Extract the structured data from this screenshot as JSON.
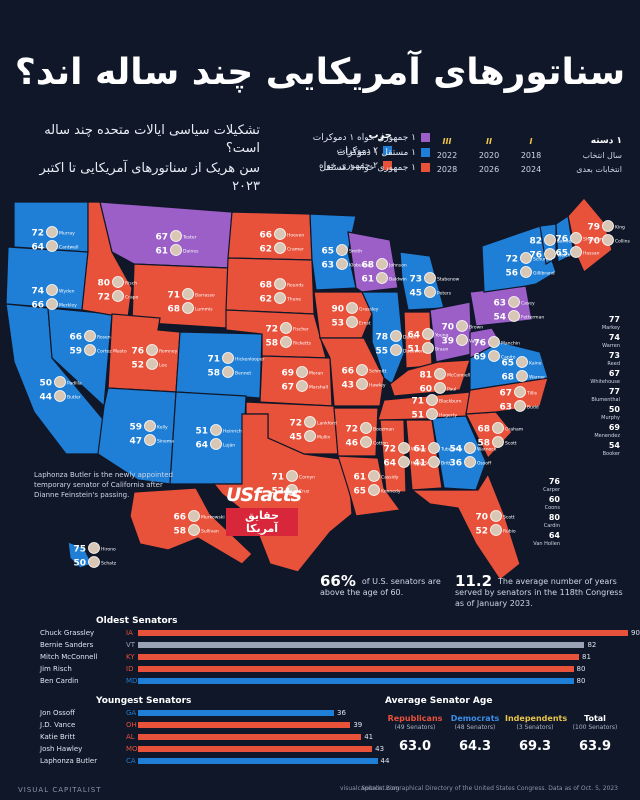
{
  "title": "سناتورهای آمریکایی چند ساله اند؟",
  "subtitle": {
    "line1": "تشکیلات سیاسی ایالات متحده چند ساله است؟",
    "line2": "سن هریک از سناتورهای آمریکایی تا اکتبر ۲۰۲۳"
  },
  "legend": {
    "party_heading": "حزب",
    "party": [
      {
        "label": "۲ دموکرات",
        "color": "#1f7fd6"
      },
      {
        "label": "۲ جمهوری خواه",
        "color": "#e8513a"
      }
    ],
    "mixed": [
      {
        "label": "۱ جمهوری خواه ۱ دموکرات",
        "color": "#9b5fc7"
      },
      {
        "label": "۱ مستقل ۱ دموکرات",
        "color": "#1f7fd6"
      },
      {
        "label": "۱ جمهوری خواه ۱ مستقل",
        "color": "#e8513a"
      }
    ]
  },
  "classes": {
    "heading": "۱ دسته",
    "romans": [
      "I",
      "II",
      "III"
    ],
    "row1_label": "سال انتخاب",
    "row1": [
      "2018",
      "2020",
      "2022"
    ],
    "row2_label": "انتخابات بعدی",
    "row2": [
      "2024",
      "2026",
      "2028"
    ]
  },
  "map_states": [
    {
      "name": "WA",
      "party": "dem",
      "ages": [
        "72",
        "64"
      ],
      "names": [
        "Murray",
        "Cantwell"
      ]
    },
    {
      "name": "OR",
      "party": "dem",
      "ages": [
        "74",
        "66"
      ],
      "names": [
        "Wyden",
        "Merkley"
      ]
    },
    {
      "name": "CA",
      "party": "dem",
      "ages": [
        "50",
        "44"
      ],
      "names": [
        "Padilla",
        "Butler"
      ]
    },
    {
      "name": "NV",
      "party": "dem",
      "ages": [
        "66",
        "59"
      ],
      "names": [
        "Rosen",
        "Cortez Masto"
      ]
    },
    {
      "name": "ID",
      "party": "rep",
      "ages": [
        "80",
        "72"
      ],
      "names": [
        "Risch",
        "Crapo"
      ]
    },
    {
      "name": "MT",
      "party": "mixed",
      "ages": [
        "67",
        "61"
      ],
      "names": [
        "Tester",
        "Daines"
      ]
    },
    {
      "name": "WY",
      "party": "rep",
      "ages": [
        "71",
        "68"
      ],
      "names": [
        "Barrasso",
        "Lummis"
      ]
    },
    {
      "name": "UT",
      "party": "rep",
      "ages": [
        "76",
        "52"
      ],
      "names": [
        "Romney",
        "Lee"
      ]
    },
    {
      "name": "AZ",
      "party": "ind-dem",
      "ages": [
        "59",
        "47"
      ],
      "names": [
        "Kelly",
        "Sinema"
      ]
    },
    {
      "name": "CO",
      "party": "dem",
      "ages": [
        "71",
        "58"
      ],
      "names": [
        "Hickenlooper",
        "Bennet"
      ]
    },
    {
      "name": "NM",
      "party": "dem",
      "ages": [
        "51",
        "64"
      ],
      "names": [
        "Heinrich",
        "Luján"
      ]
    },
    {
      "name": "ND",
      "party": "rep",
      "ages": [
        "66",
        "62"
      ],
      "names": [
        "Hoeven",
        "Cramer"
      ]
    },
    {
      "name": "SD",
      "party": "rep",
      "ages": [
        "68",
        "62"
      ],
      "names": [
        "Rounds",
        "Thune"
      ]
    },
    {
      "name": "NE",
      "party": "rep",
      "ages": [
        "72",
        "58"
      ],
      "names": [
        "Fischer",
        "Ricketts"
      ]
    },
    {
      "name": "KS",
      "party": "rep",
      "ages": [
        "69",
        "67"
      ],
      "names": [
        "Moran",
        "Marshall"
      ]
    },
    {
      "name": "OK",
      "party": "rep",
      "ages": [
        "72",
        "45"
      ],
      "names": [
        "Lankford",
        "Mullin"
      ]
    },
    {
      "name": "TX",
      "party": "rep",
      "ages": [
        "71",
        "52"
      ],
      "names": [
        "Cornyn",
        "Cruz"
      ]
    },
    {
      "name": "MN",
      "party": "dem",
      "ages": [
        "65",
        "63"
      ],
      "names": [
        "Smith",
        "Klobuchar"
      ]
    },
    {
      "name": "IA",
      "party": "rep",
      "ages": [
        "90",
        "53"
      ],
      "names": [
        "Grassley",
        "Ernst"
      ]
    },
    {
      "name": "MO",
      "party": "rep",
      "ages": [
        "66",
        "43"
      ],
      "names": [
        "Schmitt",
        "Hawley"
      ]
    },
    {
      "name": "AR",
      "party": "rep",
      "ages": [
        "72",
        "46"
      ],
      "names": [
        "Boozman",
        "Cotton"
      ]
    },
    {
      "name": "LA",
      "party": "rep",
      "ages": [
        "61",
        "65"
      ],
      "names": [
        "Cassidy",
        "Kennedy"
      ]
    },
    {
      "name": "WI",
      "party": "mixed",
      "ages": [
        "68",
        "61"
      ],
      "names": [
        "Johnson",
        "Baldwin"
      ]
    },
    {
      "name": "IL",
      "party": "dem",
      "ages": [
        "78",
        "55"
      ],
      "names": [
        "Durbin",
        "Duckworth"
      ]
    },
    {
      "name": "MI",
      "party": "dem",
      "ages": [
        "73",
        "45"
      ],
      "names": [
        "Stabenow",
        "Peters"
      ]
    },
    {
      "name": "IN",
      "party": "rep",
      "ages": [
        "64",
        "51"
      ],
      "names": [
        "Young",
        "Braun"
      ]
    },
    {
      "name": "OH",
      "party": "mixed",
      "ages": [
        "70",
        "39"
      ],
      "names": [
        "Brown",
        "Vance"
      ]
    },
    {
      "name": "KY",
      "party": "rep",
      "ages": [
        "81",
        "60"
      ],
      "names": [
        "McConnell",
        "Paul"
      ]
    },
    {
      "name": "TN",
      "party": "rep",
      "ages": [
        "71",
        "51"
      ],
      "names": [
        "Blackburn",
        "Hagerty"
      ]
    },
    {
      "name": "MS",
      "party": "rep",
      "ages": [
        "72",
        "64"
      ],
      "names": [
        "Wicker",
        "Hyde-Smith"
      ]
    },
    {
      "name": "AL",
      "party": "rep",
      "ages": [
        "61",
        "41"
      ],
      "names": [
        "Tuberville",
        "Britt"
      ]
    },
    {
      "name": "GA",
      "party": "dem",
      "ages": [
        "54",
        "36"
      ],
      "names": [
        "Warnock",
        "Ossoff"
      ]
    },
    {
      "name": "FL",
      "party": "rep",
      "ages": [
        "70",
        "52"
      ],
      "names": [
        "Scott",
        "Rubio"
      ]
    },
    {
      "name": "SC",
      "party": "rep",
      "ages": [
        "68",
        "58"
      ],
      "names": [
        "Graham",
        "Scott"
      ]
    },
    {
      "name": "NC",
      "party": "rep",
      "ages": [
        "67",
        "63"
      ],
      "names": [
        "Tillis",
        "Budd"
      ]
    },
    {
      "name": "VA",
      "party": "dem",
      "ages": [
        "65",
        "68"
      ],
      "names": [
        "Kaine",
        "Warner"
      ]
    },
    {
      "name": "WV",
      "party": "mixed",
      "ages": [
        "76",
        "69"
      ],
      "names": [
        "Manchin",
        "Capito"
      ]
    },
    {
      "name": "PA",
      "party": "mixed",
      "ages": [
        "63",
        "54"
      ],
      "names": [
        "Casey",
        "Fetterman"
      ]
    },
    {
      "name": "NY",
      "party": "dem",
      "ages": [
        "72",
        "56"
      ],
      "names": [
        "Schumer",
        "Gillibrand"
      ]
    },
    {
      "name": "ME",
      "party": "ind-rep",
      "ages": [
        "79",
        "70"
      ],
      "names": [
        "King",
        "Collins"
      ]
    },
    {
      "name": "VT",
      "party": "ind-dem",
      "ages": [
        "82",
        "76"
      ],
      "names": [
        "Sanders",
        "Welch"
      ]
    },
    {
      "name": "NH",
      "party": "dem",
      "ages": [
        "76",
        "65"
      ],
      "names": [
        "Shaheen",
        "Hassan"
      ]
    },
    {
      "name": "HI",
      "party": "dem",
      "ages": [
        "75",
        "50"
      ],
      "names": [
        "Hirono",
        "Schatz"
      ]
    },
    {
      "name": "AK",
      "party": "rep",
      "ages": [
        "66",
        "58"
      ],
      "names": [
        "Murkowski",
        "Sullivan"
      ]
    }
  ],
  "east_labels": [
    {
      "age": "77",
      "name": "Markey"
    },
    {
      "age": "74",
      "name": "Warren"
    },
    {
      "age": "73",
      "name": "Reed"
    },
    {
      "age": "67",
      "name": "Whitehouse"
    },
    {
      "age": "77",
      "name": "Blumenthal"
    },
    {
      "age": "50",
      "name": "Murphy"
    },
    {
      "age": "69",
      "name": "Menendez"
    },
    {
      "age": "54",
      "name": "Booker"
    },
    {
      "age": "76",
      "name": "Carper"
    },
    {
      "age": "60",
      "name": "Coons"
    },
    {
      "age": "80",
      "name": "Cardin"
    },
    {
      "age": "64",
      "name": "Van Hollen"
    }
  ],
  "note": "Laphonza Butler is the newly appointed temporary senator of California after Dianne Feinstein's passing.",
  "stats": [
    {
      "value": "66%",
      "text": "of U.S. senators are above the age of 60."
    },
    {
      "value": "11.2",
      "text": "The average number of years served by senators in the 118th Congress as of January 2023."
    }
  ],
  "logo": {
    "brand": "USfacts",
    "arabic": "حقایق آمریکا"
  },
  "chart_data": [
    {
      "type": "bar",
      "title": "Oldest Senators",
      "categories": [
        "Chuck Grassley",
        "Bernie Sanders",
        "Mitch McConnell",
        "Jim Risch",
        "Ben Cardin"
      ],
      "states": [
        "IA",
        "VT",
        "KY",
        "ID",
        "MD"
      ],
      "values": [
        90,
        82,
        81,
        80,
        80
      ],
      "colors": [
        "#e8513a",
        "#9aa3b5",
        "#e8513a",
        "#e8513a",
        "#1f7fd6"
      ],
      "xlim": [
        0,
        90
      ]
    },
    {
      "type": "bar",
      "title": "Youngest Senators",
      "categories": [
        "Jon Ossoff",
        "J.D. Vance",
        "Katie Britt",
        "Josh Hawley",
        "Laphonza Butler"
      ],
      "states": [
        "GA",
        "OH",
        "AL",
        "MO",
        "CA"
      ],
      "values": [
        36,
        39,
        41,
        43,
        44
      ],
      "colors": [
        "#1f7fd6",
        "#e8513a",
        "#e8513a",
        "#e8513a",
        "#1f7fd6"
      ],
      "xlim": [
        0,
        90
      ]
    }
  ],
  "average_age": {
    "title": "Average Senator Age",
    "groups": [
      {
        "name": "Republicans",
        "sub": "(49 Senators)",
        "value": "63.0",
        "color": "#e8513a"
      },
      {
        "name": "Democrats",
        "sub": "(48 Senators)",
        "value": "64.3",
        "color": "#3a8ee6"
      },
      {
        "name": "Independents",
        "sub": "(3 Senators)",
        "value": "69.3",
        "color": "#e9c44a"
      },
      {
        "name": "Total",
        "sub": "(100 Senators)",
        "value": "63.9",
        "color": "#ffffff"
      }
    ]
  },
  "footer": {
    "brand": "VISUAL CAPITALIST",
    "site": "visualcapitalist.com",
    "source": "Source: Biographical Directory of the United States Congress. Data as of Oct. 5, 2023"
  },
  "colors": {
    "dem": "#1f7fd6",
    "rep": "#e8513a",
    "mixed": "#9b5fc7",
    "background": "#0f1729"
  }
}
